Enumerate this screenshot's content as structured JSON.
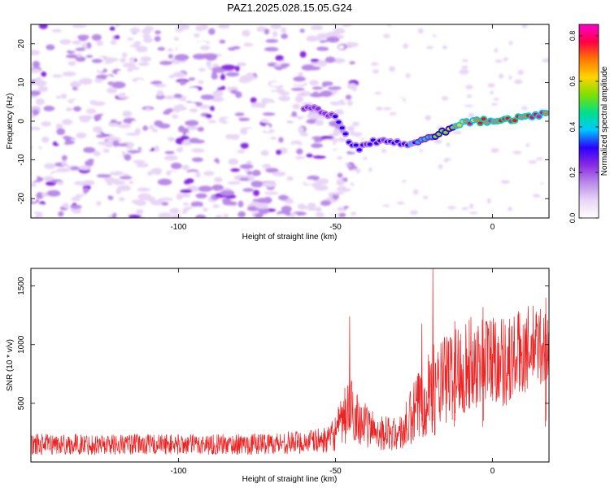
{
  "title": "PAZ1.2025.028.15.05.G24",
  "colorbar": {
    "label": "Normalized spectral amplitude",
    "ticks": [
      0.0,
      0.2,
      0.4,
      0.6,
      0.8
    ],
    "tick_labels": [
      "0.0",
      "0.2",
      "0.4",
      "0.6",
      "0.8"
    ],
    "range": [
      0.0,
      0.85
    ],
    "colors": [
      "#ffffff",
      "#e8d6f6",
      "#b98be8",
      "#8a2be2",
      "#2b00ff",
      "#00c8ff",
      "#00e08a",
      "#7fe000",
      "#ffd400",
      "#ff7a00",
      "#ff0044",
      "#ff00cc"
    ]
  },
  "chart_data": [
    {
      "type": "heatmap",
      "xlabel": "Height of straight line (km)",
      "ylabel": "Frequency (Hz)",
      "xlim": [
        -147,
        18
      ],
      "ylim": [
        -25,
        25
      ],
      "xticks": [
        -100,
        -50,
        0
      ],
      "xtick_labels": [
        "-100",
        "-50",
        "0"
      ],
      "yticks": [
        -20,
        -10,
        0,
        10,
        20
      ],
      "ytick_labels": [
        "-20",
        "-10",
        "0",
        "10",
        "20"
      ],
      "noise_region_x": [
        -147,
        -50
      ],
      "signal_track": {
        "x": [
          -60,
          -55,
          -50,
          -47,
          -45,
          -42,
          -38,
          -33,
          -28,
          -22,
          -18,
          -14,
          -10,
          -5,
          0,
          5,
          10,
          15,
          18
        ],
        "y": [
          3.5,
          3,
          1,
          -3,
          -6,
          -7,
          -5,
          -5.5,
          -6,
          -4.5,
          -3.5,
          -2,
          -0.5,
          0,
          0,
          0.5,
          1,
          1.5,
          2
        ],
        "amplitude": [
          0.25,
          0.25,
          0.28,
          0.3,
          0.3,
          0.28,
          0.3,
          0.3,
          0.32,
          0.4,
          0.5,
          0.6,
          0.7,
          0.78,
          0.82,
          0.8,
          0.82,
          0.8,
          0.7
        ]
      }
    },
    {
      "type": "line",
      "xlabel": "Height of straight line (km)",
      "ylabel": "SNR (10 * v/v)",
      "xlim": [
        -147,
        18
      ],
      "ylim": [
        0,
        1650
      ],
      "xticks": [
        -100,
        -50,
        0
      ],
      "xtick_labels": [
        "-100",
        "-50",
        "0"
      ],
      "yticks": [
        500,
        1000,
        1500
      ],
      "ytick_labels": [
        "500",
        "1000",
        "1500"
      ],
      "color": "#ee2222",
      "envelope": {
        "x": [
          -147,
          -120,
          -100,
          -80,
          -60,
          -52,
          -48,
          -46,
          -44,
          -40,
          -35,
          -30,
          -28,
          -25,
          -22,
          -20,
          -18,
          -15,
          -10,
          -5,
          0,
          5,
          10,
          15,
          18
        ],
        "mean": [
          150,
          150,
          150,
          150,
          170,
          190,
          320,
          450,
          420,
          300,
          250,
          230,
          280,
          400,
          550,
          650,
          600,
          700,
          800,
          850,
          900,
          850,
          950,
          1000,
          950
        ],
        "spread": [
          90,
          90,
          90,
          90,
          100,
          110,
          220,
          300,
          250,
          180,
          150,
          140,
          200,
          300,
          350,
          400,
          380,
          400,
          420,
          400,
          400,
          400,
          380,
          350,
          350
        ]
      },
      "peaks": [
        {
          "x": -45.5,
          "y": 1240
        },
        {
          "x": -22.5,
          "y": 1180
        },
        {
          "x": -19,
          "y": 1650
        },
        {
          "x": -12,
          "y": 1200
        },
        {
          "x": -3,
          "y": 1320
        },
        {
          "x": 17,
          "y": 1400
        }
      ]
    }
  ]
}
